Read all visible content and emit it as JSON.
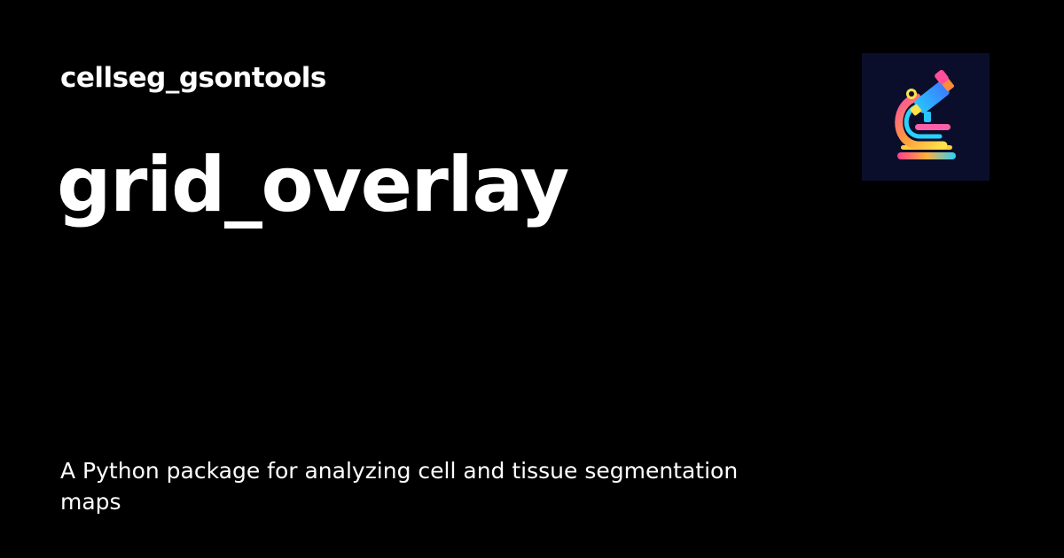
{
  "site": {
    "name": "cellseg_gsontools"
  },
  "page": {
    "title": "grid_overlay",
    "description": "A Python package for analyzing cell and tissue segmentation maps"
  },
  "logo": {
    "icon": "microscope-icon",
    "background": "#0b0e2a"
  },
  "colors": {
    "background": "#000000",
    "text": "#ffffff"
  }
}
